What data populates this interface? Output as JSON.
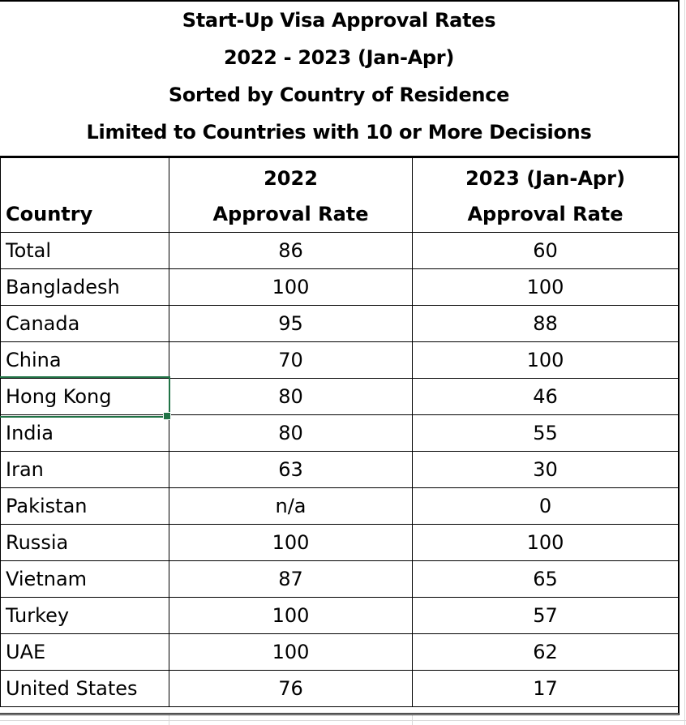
{
  "title_lines": [
    "Start-Up Visa Approval Rates",
    "2022 - 2023 (Jan-Apr)",
    "Sorted by Country of Residence",
    "Limited to Countries with 10 or More Decisions"
  ],
  "headers": {
    "country": "Country",
    "col2022_line1": "2022",
    "col2022_line2": "Approval Rate",
    "col2023_line1": "2023 (Jan-Apr)",
    "col2023_line2": "Approval Rate"
  },
  "rows": [
    {
      "country": "Total",
      "y2022": "86",
      "y2023": "60"
    },
    {
      "country": "Bangladesh",
      "y2022": "100",
      "y2023": "100"
    },
    {
      "country": "Canada",
      "y2022": "95",
      "y2023": "88"
    },
    {
      "country": "China",
      "y2022": "70",
      "y2023": "100"
    },
    {
      "country": "Hong Kong",
      "y2022": "80",
      "y2023": "46"
    },
    {
      "country": "India",
      "y2022": "80",
      "y2023": "55"
    },
    {
      "country": "Iran",
      "y2022": "63",
      "y2023": "30"
    },
    {
      "country": "Pakistan",
      "y2022": "n/a",
      "y2023": "0"
    },
    {
      "country": "Russia",
      "y2022": "100",
      "y2023": "100"
    },
    {
      "country": "Vietnam",
      "y2022": "87",
      "y2023": "65"
    },
    {
      "country": "Turkey",
      "y2022": "100",
      "y2023": "57"
    },
    {
      "country": "UAE",
      "y2022": "100",
      "y2023": "62"
    },
    {
      "country": "United States",
      "y2022": "76",
      "y2023": "17"
    }
  ],
  "selection": {
    "row_index": 4,
    "column": "country"
  },
  "colors": {
    "selection": "#217346",
    "gridline": "#d9d9d9"
  }
}
